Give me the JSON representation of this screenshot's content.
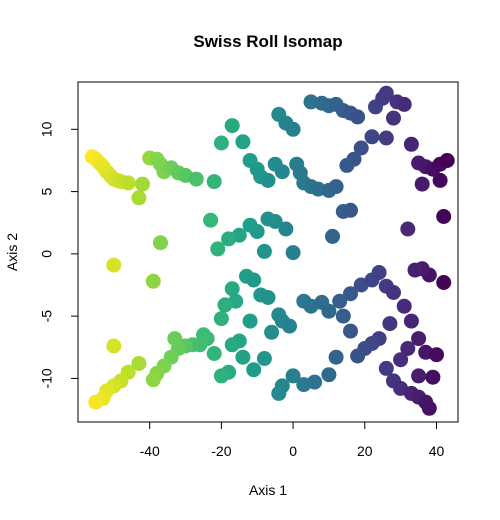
{
  "chart_data": {
    "type": "scatter",
    "title": "Swiss Roll Isomap",
    "xlabel": "Axis 1",
    "ylabel": "Axis 2",
    "xlim": [
      -60,
      46
    ],
    "ylim": [
      -13.5,
      13.8
    ],
    "xticks": [
      -40,
      -20,
      0,
      20,
      40
    ],
    "yticks": [
      -10,
      -5,
      0,
      5,
      10
    ],
    "xtick_labels": [
      "-40",
      "-20",
      "0",
      "20",
      "40"
    ],
    "ytick_labels": [
      "-10",
      "-5",
      "0",
      "5",
      "10"
    ],
    "grid": false,
    "legend": "none",
    "colormap": "viridis (reversed: yellow at low Axis 1, dark purple at high Axis 1)",
    "palette": [
      "#fde725",
      "#b5de2b",
      "#6ece58",
      "#35b779",
      "#1f9e89",
      "#26828e",
      "#31688e",
      "#3e4989",
      "#482878",
      "#440154"
    ],
    "points": [
      [
        -56,
        7.8
      ],
      [
        -55,
        7.6
      ],
      [
        -54,
        7.3
      ],
      [
        -53,
        7.0
      ],
      [
        -52,
        6.6
      ],
      [
        -51,
        6.3
      ],
      [
        -50,
        6.0
      ],
      [
        -49,
        5.9
      ],
      [
        -48,
        5.8
      ],
      [
        -46,
        5.7
      ],
      [
        -42,
        5.6
      ],
      [
        -43,
        4.5
      ],
      [
        -40,
        7.7
      ],
      [
        -38,
        7.6
      ],
      [
        -37,
        7.2
      ],
      [
        -36,
        6.6
      ],
      [
        -34,
        6.9
      ],
      [
        -32,
        6.5
      ],
      [
        -30,
        6.3
      ],
      [
        -27,
        6.0
      ],
      [
        -22,
        5.8
      ],
      [
        -20,
        8.9
      ],
      [
        -17,
        10.3
      ],
      [
        -14,
        9.0
      ],
      [
        -12,
        7.5
      ],
      [
        -10,
        6.8
      ],
      [
        -9,
        6.2
      ],
      [
        -7,
        5.9
      ],
      [
        -5,
        7.2
      ],
      [
        -3,
        6.6
      ],
      [
        -4,
        11.2
      ],
      [
        -2,
        10.5
      ],
      [
        0,
        10.0
      ],
      [
        1,
        7.2
      ],
      [
        2,
        6.5
      ],
      [
        3,
        5.7
      ],
      [
        5,
        5.4
      ],
      [
        7,
        5.2
      ],
      [
        10,
        5.1
      ],
      [
        12,
        5.4
      ],
      [
        5,
        12.2
      ],
      [
        8,
        12.1
      ],
      [
        10,
        11.9
      ],
      [
        12,
        12.0
      ],
      [
        14,
        11.5
      ],
      [
        16,
        11.3
      ],
      [
        18,
        11.0
      ],
      [
        19,
        8.5
      ],
      [
        17,
        7.6
      ],
      [
        15,
        7.1
      ],
      [
        22,
        9.4
      ],
      [
        23,
        11.8
      ],
      [
        25,
        12.5
      ],
      [
        26,
        12.9
      ],
      [
        29,
        12.2
      ],
      [
        31,
        12.0
      ],
      [
        28,
        10.9
      ],
      [
        26,
        9.3
      ],
      [
        33,
        8.8
      ],
      [
        35,
        7.3
      ],
      [
        37,
        7.0
      ],
      [
        39,
        6.8
      ],
      [
        41,
        7.2
      ],
      [
        43,
        7.5
      ],
      [
        41,
        5.9
      ],
      [
        36,
        5.6
      ],
      [
        42,
        3.0
      ],
      [
        32,
        2.0
      ],
      [
        14,
        3.4
      ],
      [
        16,
        3.5
      ],
      [
        11,
        1.4
      ],
      [
        -2,
        2.0
      ],
      [
        -5,
        2.6
      ],
      [
        -7,
        2.8
      ],
      [
        -10,
        1.8
      ],
      [
        -12,
        2.3
      ],
      [
        -15,
        1.5
      ],
      [
        -18,
        1.2
      ],
      [
        -21,
        0.4
      ],
      [
        -23,
        2.7
      ],
      [
        -37,
        0.9
      ],
      [
        -39,
        -2.2
      ],
      [
        -50,
        -0.9
      ],
      [
        -8,
        0.2
      ],
      [
        0,
        0.1
      ],
      [
        -17,
        -2.8
      ],
      [
        -16,
        -3.8
      ],
      [
        -13,
        -1.8
      ],
      [
        -11,
        -2.1
      ],
      [
        -9,
        -3.3
      ],
      [
        -7,
        -3.5
      ],
      [
        -4,
        -4.9
      ],
      [
        -3,
        -5.4
      ],
      [
        -1,
        -5.8
      ],
      [
        3,
        -3.8
      ],
      [
        5,
        -4.2
      ],
      [
        8,
        -3.9
      ],
      [
        10,
        -4.6
      ],
      [
        13,
        -3.8
      ],
      [
        16,
        -3.2
      ],
      [
        19,
        -2.5
      ],
      [
        22,
        -2.1
      ],
      [
        24,
        -1.5
      ],
      [
        26,
        -2.6
      ],
      [
        28,
        -3.1
      ],
      [
        31,
        -4.2
      ],
      [
        33,
        -5.4
      ],
      [
        35,
        -6.8
      ],
      [
        37,
        -7.9
      ],
      [
        40,
        -8.1
      ],
      [
        42,
        -2.3
      ],
      [
        38,
        -1.7
      ],
      [
        36,
        -1.2
      ],
      [
        34,
        -1.3
      ],
      [
        27,
        -5.6
      ],
      [
        24,
        -6.8
      ],
      [
        22,
        -7.2
      ],
      [
        20,
        -7.6
      ],
      [
        18,
        -8.2
      ],
      [
        16,
        -6.2
      ],
      [
        14,
        -5.0
      ],
      [
        26,
        -9.2
      ],
      [
        28,
        -10.2
      ],
      [
        30,
        -10.8
      ],
      [
        33,
        -11.2
      ],
      [
        35,
        -11.5
      ],
      [
        37,
        -11.9
      ],
      [
        38,
        -12.4
      ],
      [
        35,
        -9.8
      ],
      [
        39,
        -9.9
      ],
      [
        30,
        -8.5
      ],
      [
        32,
        -7.6
      ],
      [
        12,
        -8.3
      ],
      [
        10,
        -9.7
      ],
      [
        6,
        -10.3
      ],
      [
        3,
        -10.5
      ],
      [
        0,
        -9.8
      ],
      [
        -3,
        -10.6
      ],
      [
        -4,
        -11.2
      ],
      [
        -8,
        -8.4
      ],
      [
        -11,
        -9.3
      ],
      [
        -14,
        -8.3
      ],
      [
        -15,
        -7.0
      ],
      [
        -17,
        -7.3
      ],
      [
        -18,
        -9.5
      ],
      [
        -20,
        -9.8
      ],
      [
        -22,
        -8.0
      ],
      [
        -24,
        -6.8
      ],
      [
        -25,
        -6.5
      ],
      [
        -28,
        -7.3
      ],
      [
        -30,
        -7.4
      ],
      [
        -32,
        -7.6
      ],
      [
        -34,
        -8.3
      ],
      [
        -36,
        -9.0
      ],
      [
        -38,
        -9.6
      ],
      [
        -39,
        -10.1
      ],
      [
        -43,
        -8.8
      ],
      [
        -46,
        -9.5
      ],
      [
        -48,
        -10.2
      ],
      [
        -50,
        -10.6
      ],
      [
        -52,
        -11.0
      ],
      [
        -53,
        -11.6
      ],
      [
        -55,
        -11.9
      ],
      [
        -50,
        -7.4
      ],
      [
        -33,
        -6.8
      ],
      [
        -26,
        -7.3
      ],
      [
        -20,
        -5.2
      ],
      [
        -19,
        -4.1
      ],
      [
        -12,
        -5.4
      ],
      [
        -6,
        -6.3
      ]
    ]
  }
}
